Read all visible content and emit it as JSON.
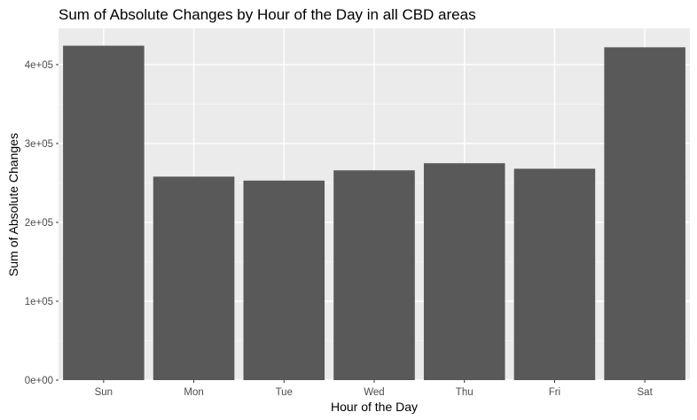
{
  "chart_data": {
    "type": "bar",
    "title": "Sum of Absolute Changes by Hour of the Day in all CBD areas",
    "xlabel": "Hour of the Day",
    "ylabel": "Sum of Absolute Changes",
    "categories": [
      "Sun",
      "Mon",
      "Tue",
      "Wed",
      "Thu",
      "Fri",
      "Sat"
    ],
    "values": [
      424000,
      258000,
      253000,
      266000,
      275000,
      268000,
      422000
    ],
    "ylim": [
      0,
      446000
    ],
    "y_ticks": [
      0,
      100000,
      200000,
      300000,
      400000
    ],
    "y_tick_labels": [
      "0e+00",
      "1e+05",
      "2e+05",
      "3e+05",
      "4e+05"
    ],
    "grid": true,
    "legend": "none",
    "colors": {
      "bar": "#595959",
      "panel": "#ebebeb",
      "grid_major": "#ffffff",
      "grid_minor": "#f5f5f5",
      "tick": "#333333"
    }
  }
}
